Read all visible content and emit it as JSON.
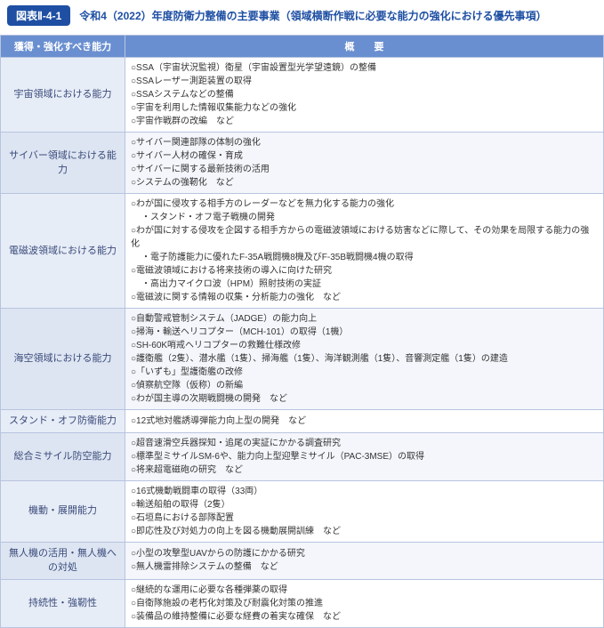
{
  "figure_label": "図表Ⅱ-4-1",
  "figure_title": "令和4（2022）年度防衛力整備の主要事業（領域横断作戦に必要な能力の強化における優先事項）",
  "col_headers": {
    "c1": "獲得・強化すべき能力",
    "c2": "概　　要"
  },
  "rows": [
    {
      "cat": "宇宙領域における能力",
      "items": [
        "○SSA（宇宙状況監視）衛星（宇宙設置型光学望遠鏡）の整備",
        "○SSAレーザー測距装置の取得",
        "○SSAシステムなどの整備",
        "○宇宙を利用した情報収集能力などの強化",
        "○宇宙作戦群の改編　など"
      ]
    },
    {
      "cat": "サイバー領域における能力",
      "items": [
        "○サイバー関連部隊の体制の強化",
        "○サイバー人材の確保・育成",
        "○サイバーに関する最新技術の活用",
        "○システムの強靭化　など"
      ]
    },
    {
      "cat": "電磁波領域における能力",
      "items": [
        "○わが国に侵攻する相手方のレーダーなどを無力化する能力の強化",
        "　・スタンド・オフ電子戦機の開発",
        "○わが国に対する侵攻を企図する相手方からの電磁波領域における妨害などに際して、その効果を局限する能力の強化",
        "　・電子防護能力に優れたF-35A戦闘機8機及びF-35B戦闘機4機の取得",
        "○電磁波領域における将来技術の導入に向けた研究",
        "　・高出力マイクロ波（HPM）照射技術の実証",
        "○電磁波に関する情報の収集・分析能力の強化　など"
      ]
    },
    {
      "cat": "海空領域における能力",
      "items": [
        "○自動警戒管制システム（JADGE）の能力向上",
        "○掃海・輸送ヘリコプター（MCH-101）の取得（1機）",
        "○SH-60K哨戒ヘリコプターの救難仕様改修",
        "○護衛艦（2隻）、潜水艦（1隻）、掃海艦（1隻）、海洋観測艦（1隻）、音響測定艦（1隻）の建造",
        "○「いずも」型護衛艦の改修",
        "○偵察航空隊（仮称）の新編",
        "○わが国主導の次期戦闘機の開発　など"
      ]
    },
    {
      "cat": "スタンド・オフ防衛能力",
      "items": [
        "○12式地対艦誘導弾能力向上型の開発　など"
      ]
    },
    {
      "cat": "総合ミサイル防空能力",
      "items": [
        "○超音速滑空兵器探知・追尾の実証にかかる調査研究",
        "○標準型ミサイルSM-6や、能力向上型迎撃ミサイル（PAC-3MSE）の取得",
        "○将来超電磁砲の研究　など"
      ]
    },
    {
      "cat": "機動・展開能力",
      "items": [
        "○16式機動戦闘車の取得（33両）",
        "○輸送船舶の取得（2隻）",
        "○石垣島における部隊配置",
        "○即応性及び対処力の向上を図る機動展開訓練　など"
      ]
    },
    {
      "cat": "無人機の活用・無人機への対処",
      "items": [
        "○小型の攻撃型UAVからの防護にかかる研究",
        "○無人機雷排除システムの整備　など"
      ]
    },
    {
      "cat": "持続性・強靭性",
      "items": [
        "○継続的な運用に必要な各種弾薬の取得",
        "○自衛隊施設の老朽化対策及び耐震化対策の推進",
        "○装備品の維持整備に必要な経費の着実な確保　など"
      ]
    }
  ]
}
